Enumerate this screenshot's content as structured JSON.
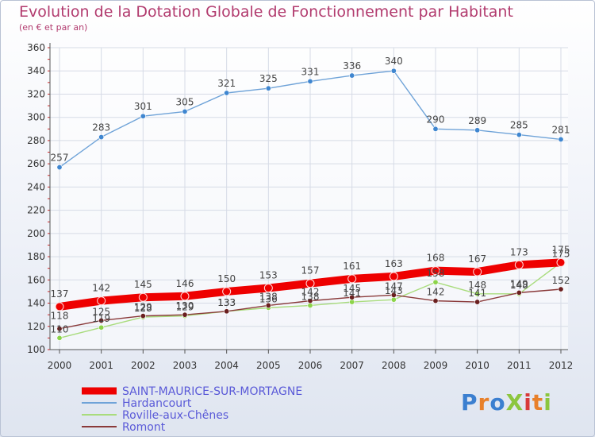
{
  "title": "Evolution de la Dotation Globale de Fonctionnement par Habitant",
  "subtitle": "(en € et par an)",
  "logo": {
    "text": "ProXiti",
    "colors": [
      "#3b7fd0",
      "#e8802a",
      "#3b7fd0",
      "#8cc63e",
      "#d83a3a",
      "#e8802a",
      "#8cc63e"
    ]
  },
  "chart_data": {
    "type": "line",
    "title": "Evolution de la Dotation Globale de Fonctionnement par Habitant",
    "subtitle": "(en € et par an)",
    "xlabel": "",
    "ylabel": "",
    "ylim": [
      100,
      360
    ],
    "yticks": [
      100,
      120,
      140,
      160,
      180,
      200,
      220,
      240,
      260,
      280,
      300,
      320,
      340,
      360
    ],
    "grid": true,
    "legend_position": "bottom-left",
    "x": [
      "2000",
      "2001",
      "2002",
      "2003",
      "2004",
      "2005",
      "2006",
      "2007",
      "2008",
      "2009",
      "2010",
      "2011",
      "2012"
    ],
    "series": [
      {
        "name": "SAINT-MAURICE-SUR-MORTAGNE",
        "color": "#ee0000",
        "markerColor": "#ee0000",
        "emphasis": true,
        "values": [
          137,
          142,
          145,
          146,
          150,
          153,
          157,
          161,
          163,
          168,
          167,
          173,
          175
        ]
      },
      {
        "name": "Hardancourt",
        "color": "#6fa3d8",
        "markerColor": "#3f86d0",
        "emphasis": false,
        "values": [
          257,
          283,
          301,
          305,
          321,
          325,
          331,
          336,
          340,
          290,
          289,
          285,
          281
        ]
      },
      {
        "name": "Roville-aux-Chênes",
        "color": "#a9dc7d",
        "markerColor": "#8cd44a",
        "emphasis": false,
        "values": [
          110,
          119,
          128,
          129,
          133,
          136,
          138,
          141,
          143,
          158,
          148,
          148,
          175
        ]
      },
      {
        "name": "Romont",
        "color": "#8a3a3a",
        "markerColor": "#6a1f1f",
        "emphasis": false,
        "values": [
          118,
          125,
          129,
          130,
          133,
          138,
          142,
          145,
          147,
          142,
          141,
          149,
          152
        ]
      }
    ]
  }
}
